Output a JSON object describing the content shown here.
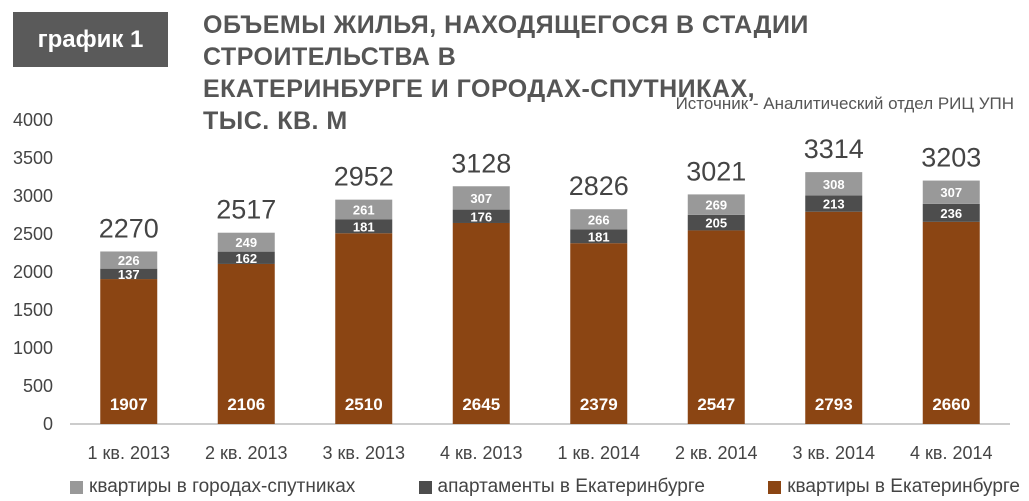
{
  "badge": "график 1",
  "title_lines": [
    "ОБЪЕМЫ ЖИЛЬЯ, НАХОДЯЩЕГОСЯ В СТАДИИ СТРОИТЕЛЬСТВА В",
    "ЕКАТЕРИНБУРГЕ И ГОРОДАХ-СПУТНИКАХ,",
    "ТЫС. КВ. М"
  ],
  "source": "Источник - Аналитический отдел РИЦ УПН",
  "colors": {
    "ekb_flats": "#8b4513",
    "ekb_apartments": "#4d4d4d",
    "satellite_flats": "#999999",
    "axis": "#bbbbbb"
  },
  "chart_data": {
    "type": "bar",
    "stacked": true,
    "categories": [
      "1 кв. 2013",
      "2 кв. 2013",
      "3 кв. 2013",
      "4 кв. 2013",
      "1 кв. 2014",
      "2 кв. 2014",
      "3 кв. 2014",
      "4 кв. 2014"
    ],
    "series": [
      {
        "name": "квартиры в Екатеринбурге",
        "color": "#8b4513",
        "values": [
          1907,
          2106,
          2510,
          2645,
          2379,
          2547,
          2793,
          2660
        ]
      },
      {
        "name": "апартаменты в Екатеринбурге",
        "color": "#4d4d4d",
        "values": [
          137,
          162,
          181,
          176,
          181,
          205,
          213,
          236
        ]
      },
      {
        "name": "квартиры в городах-спутниках",
        "color": "#999999",
        "values": [
          226,
          249,
          261,
          307,
          266,
          269,
          308,
          307
        ]
      }
    ],
    "totals": [
      2270,
      2517,
      2952,
      3128,
      2826,
      3021,
      3314,
      3203
    ],
    "yticks": [
      0,
      500,
      1000,
      1500,
      2000,
      2500,
      3000,
      3500,
      4000
    ],
    "ylim": [
      0,
      4000
    ],
    "grid": false,
    "legend_position": "bottom"
  },
  "legend_order": [
    2,
    1,
    0
  ]
}
